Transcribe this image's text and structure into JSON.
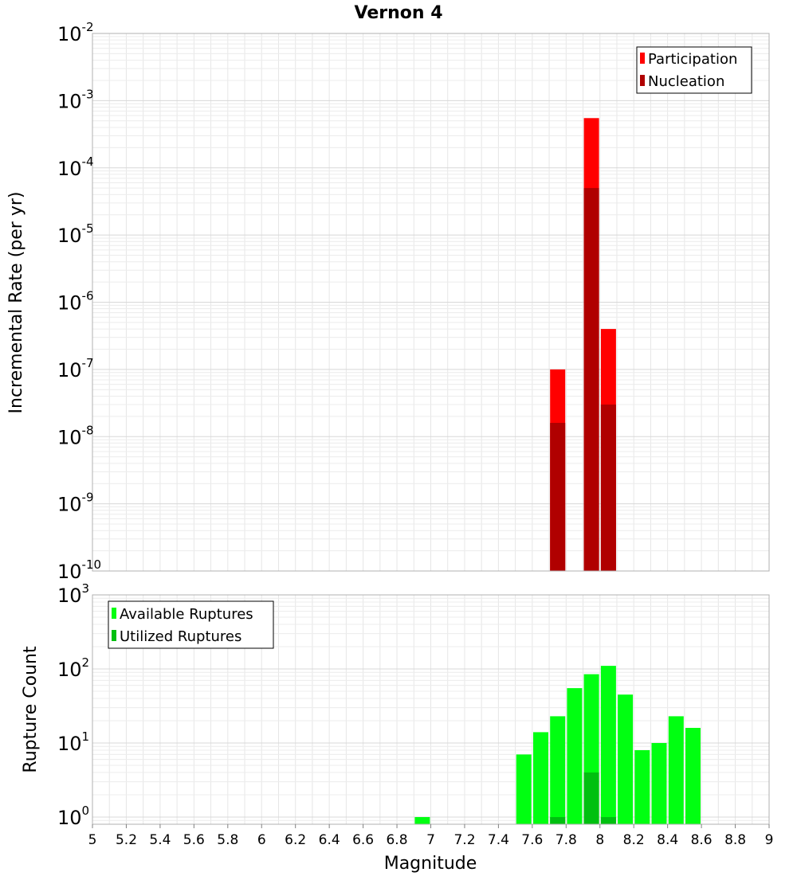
{
  "chart_data": [
    {
      "type": "bar",
      "title": "Vernon 4",
      "ylabel": "Incremental Rate (per yr)",
      "xlabel": "Magnitude",
      "yscale": "log",
      "ylim": [
        1e-10,
        0.01
      ],
      "xlim": [
        5,
        9
      ],
      "y_ticks": [
        {
          "base": "10",
          "exp": "-10",
          "value": 1e-10
        },
        {
          "base": "10",
          "exp": "-9",
          "value": 1e-09
        },
        {
          "base": "10",
          "exp": "-8",
          "value": 1e-08
        },
        {
          "base": "10",
          "exp": "-7",
          "value": 1e-07
        },
        {
          "base": "10",
          "exp": "-6",
          "value": 1e-06
        },
        {
          "base": "10",
          "exp": "-5",
          "value": 1e-05
        },
        {
          "base": "10",
          "exp": "-4",
          "value": 0.0001
        },
        {
          "base": "10",
          "exp": "-3",
          "value": 0.001
        },
        {
          "base": "10",
          "exp": "-2",
          "value": 0.01
        }
      ],
      "grid": true,
      "legend_position": "top-right",
      "series": [
        {
          "name": "Participation",
          "color": "#ff0000",
          "x": [
            7.75,
            7.95,
            8.05
          ],
          "values": [
            1e-07,
            0.00055,
            4e-07
          ]
        },
        {
          "name": "Nucleation",
          "color": "#b00000",
          "x": [
            7.75,
            7.95,
            8.05
          ],
          "values": [
            1.6e-08,
            5e-05,
            3e-08
          ]
        }
      ]
    },
    {
      "type": "bar",
      "ylabel": "Rupture Count",
      "xlabel": "Magnitude",
      "yscale": "log",
      "ylim": [
        0.8,
        1000
      ],
      "xlim": [
        5,
        9
      ],
      "x_ticks": [
        "5",
        "5.2",
        "5.4",
        "5.6",
        "5.8",
        "6",
        "6.2",
        "6.4",
        "6.6",
        "6.8",
        "7",
        "7.2",
        "7.4",
        "7.6",
        "7.8",
        "8",
        "8.2",
        "8.4",
        "8.6",
        "8.8",
        "9"
      ],
      "y_ticks": [
        {
          "base": "10",
          "exp": "0",
          "value": 1
        },
        {
          "base": "10",
          "exp": "1",
          "value": 10
        },
        {
          "base": "10",
          "exp": "2",
          "value": 100
        },
        {
          "base": "10",
          "exp": "3",
          "value": 1000
        }
      ],
      "grid": true,
      "legend_position": "top-left",
      "series": [
        {
          "name": "Available Ruptures",
          "color": "#00ff11",
          "x": [
            6.95,
            7.55,
            7.65,
            7.75,
            7.85,
            7.95,
            8.05,
            8.15,
            8.25,
            8.35,
            8.45,
            8.55
          ],
          "values": [
            1,
            7,
            14,
            23,
            55,
            85,
            110,
            45,
            8,
            10,
            23,
            16
          ]
        },
        {
          "name": "Utilized Ruptures",
          "color": "#00c010",
          "x": [
            7.75,
            7.95,
            8.05
          ],
          "values": [
            1,
            4,
            1
          ]
        }
      ]
    }
  ]
}
